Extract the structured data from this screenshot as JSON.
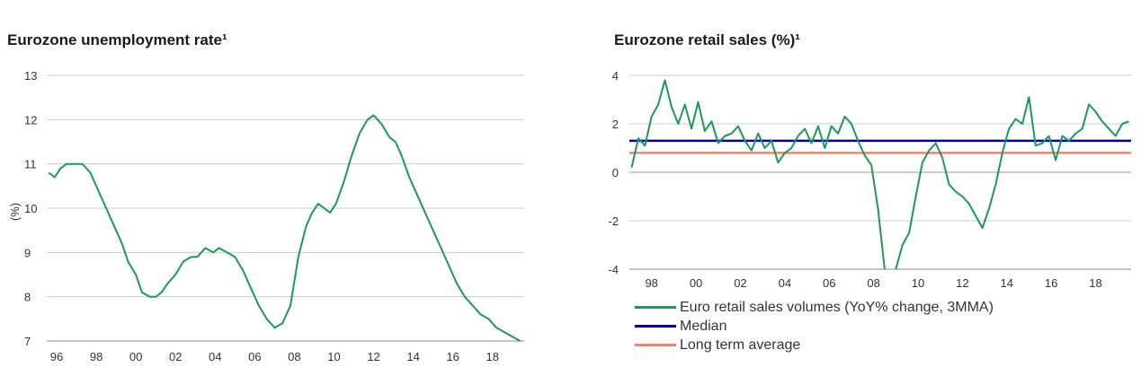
{
  "left_chart": {
    "title": "Eurozone unemployment rate¹",
    "ylabel": "(%)"
  },
  "right_chart": {
    "title": "Eurozone retail sales (%)¹"
  },
  "colors": {
    "series": "#1a9a55",
    "median": "#0000a0",
    "long_term_average": "#f48068",
    "grid": "#cccccc"
  },
  "chart_data": [
    {
      "type": "line",
      "title": "Eurozone unemployment rate¹",
      "xlabel": "",
      "ylabel": "(%)",
      "ylim": [
        7,
        13
      ],
      "xlim": [
        1995.5,
        2019.6
      ],
      "y_ticks": [
        "7",
        "8",
        "9",
        "10",
        "11",
        "12",
        "13"
      ],
      "x_ticks": [
        {
          "x": 1996,
          "label": "96"
        },
        {
          "x": 1998,
          "label": "98"
        },
        {
          "x": 2000,
          "label": "00"
        },
        {
          "x": 2002,
          "label": "02"
        },
        {
          "x": 2004,
          "label": "04"
        },
        {
          "x": 2006,
          "label": "06"
        },
        {
          "x": 2008,
          "label": "08"
        },
        {
          "x": 2010,
          "label": "10"
        },
        {
          "x": 2012,
          "label": "12"
        },
        {
          "x": 2014,
          "label": "14"
        },
        {
          "x": 2016,
          "label": "16"
        },
        {
          "x": 2018,
          "label": "18"
        }
      ],
      "grid": true,
      "series": [
        {
          "x": [
            1995.6,
            1995.9,
            1996.2,
            1996.5,
            1996.8,
            1997.0,
            1997.3,
            1997.7,
            1998.0,
            1998.3,
            1998.7,
            1999.0,
            1999.3,
            1999.6,
            2000.0,
            2000.3,
            2000.7,
            2001.0,
            2001.3,
            2001.6,
            2002.0,
            2002.4,
            2002.8,
            2003.1,
            2003.5,
            2003.9,
            2004.2,
            2004.6,
            2005.0,
            2005.4,
            2005.8,
            2006.2,
            2006.6,
            2007.0,
            2007.4,
            2007.8,
            2008.2,
            2008.6,
            2008.9,
            2009.2,
            2009.5,
            2009.8,
            2010.1,
            2010.5,
            2010.9,
            2011.3,
            2011.7,
            2012.0,
            2012.4,
            2012.8,
            2013.1,
            2013.4,
            2013.8,
            2014.2,
            2014.6,
            2015.0,
            2015.4,
            2015.8,
            2016.2,
            2016.6,
            2017.0,
            2017.4,
            2017.8,
            2018.2,
            2018.6,
            2019.0,
            2019.4
          ],
          "y": [
            10.8,
            10.7,
            10.9,
            11.0,
            11.0,
            11.0,
            11.0,
            10.8,
            10.5,
            10.2,
            9.8,
            9.5,
            9.2,
            8.8,
            8.5,
            8.1,
            8.0,
            8.0,
            8.1,
            8.3,
            8.5,
            8.8,
            8.9,
            8.9,
            9.1,
            9.0,
            9.1,
            9.0,
            8.9,
            8.6,
            8.2,
            7.8,
            7.5,
            7.3,
            7.4,
            7.8,
            8.9,
            9.6,
            9.9,
            10.1,
            10.0,
            9.9,
            10.1,
            10.6,
            11.2,
            11.7,
            12.0,
            12.1,
            11.9,
            11.6,
            11.5,
            11.2,
            10.7,
            10.3,
            9.9,
            9.5,
            9.1,
            8.7,
            8.3,
            8.0,
            7.8,
            7.6,
            7.5,
            7.3,
            7.2,
            7.1,
            7.0
          ]
        }
      ]
    },
    {
      "type": "line",
      "title": "Eurozone retail sales (%)¹",
      "xlabel": "",
      "ylabel": "",
      "ylim": [
        -4,
        4
      ],
      "xlim": [
        1997.0,
        2019.6
      ],
      "y_ticks": [
        "4",
        "2",
        "0",
        "-2",
        "-4"
      ],
      "x_ticks": [
        {
          "x": 1998,
          "label": "98"
        },
        {
          "x": 2000,
          "label": "00"
        },
        {
          "x": 2002,
          "label": "02"
        },
        {
          "x": 2004,
          "label": "04"
        },
        {
          "x": 2006,
          "label": "06"
        },
        {
          "x": 2008,
          "label": "08"
        },
        {
          "x": 2010,
          "label": "10"
        },
        {
          "x": 2012,
          "label": "12"
        },
        {
          "x": 2014,
          "label": "14"
        },
        {
          "x": 2016,
          "label": "16"
        },
        {
          "x": 2018,
          "label": "18"
        }
      ],
      "grid": true,
      "legend_position": "bottom",
      "series": [
        {
          "name": "Euro retail sales volumes (YoY% change, 3MMA)",
          "x": [
            1997.1,
            1997.4,
            1997.7,
            1998.0,
            1998.3,
            1998.6,
            1998.9,
            1999.2,
            1999.5,
            1999.8,
            2000.1,
            2000.4,
            2000.7,
            2001.0,
            2001.3,
            2001.6,
            2001.9,
            2002.2,
            2002.5,
            2002.8,
            2003.1,
            2003.4,
            2003.7,
            2004.0,
            2004.3,
            2004.6,
            2004.9,
            2005.2,
            2005.5,
            2005.8,
            2006.1,
            2006.4,
            2006.7,
            2007.0,
            2007.3,
            2007.6,
            2007.9,
            2008.2,
            2008.5,
            2008.7,
            2009.0,
            2009.3,
            2009.6,
            2009.9,
            2010.2,
            2010.5,
            2010.8,
            2011.1,
            2011.4,
            2011.7,
            2012.0,
            2012.3,
            2012.6,
            2012.9,
            2013.2,
            2013.5,
            2013.8,
            2014.1,
            2014.4,
            2014.7,
            2015.0,
            2015.3,
            2015.6,
            2015.9,
            2016.2,
            2016.5,
            2016.8,
            2017.1,
            2017.4,
            2017.7,
            2018.0,
            2018.3,
            2018.6,
            2018.9,
            2019.2,
            2019.5
          ],
          "y": [
            0.2,
            1.4,
            1.1,
            2.3,
            2.8,
            3.8,
            2.7,
            2.0,
            2.8,
            1.8,
            2.9,
            1.7,
            2.1,
            1.2,
            1.5,
            1.6,
            1.9,
            1.3,
            0.9,
            1.6,
            1.0,
            1.3,
            0.4,
            0.8,
            1.0,
            1.5,
            1.8,
            1.2,
            1.9,
            1.0,
            1.9,
            1.6,
            2.3,
            2.0,
            1.3,
            0.7,
            0.3,
            -1.5,
            -4.0,
            -5.0,
            -4.0,
            -3.0,
            -2.5,
            -1.0,
            0.4,
            0.9,
            1.2,
            0.6,
            -0.5,
            -0.8,
            -1.0,
            -1.3,
            -1.8,
            -2.3,
            -1.5,
            -0.5,
            0.8,
            1.8,
            2.2,
            2.0,
            3.1,
            1.1,
            1.2,
            1.5,
            0.5,
            1.5,
            1.3,
            1.6,
            1.8,
            2.8,
            2.5,
            2.1,
            1.8,
            1.5,
            2.0,
            2.1
          ]
        },
        {
          "name": "Median",
          "constant": 1.3
        },
        {
          "name": "Long term average",
          "constant": 0.8
        }
      ]
    }
  ]
}
